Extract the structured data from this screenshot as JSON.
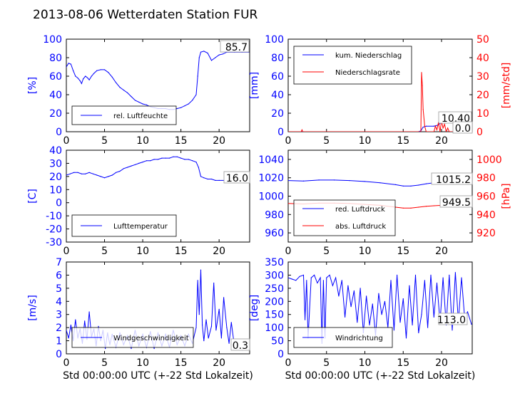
{
  "figure": {
    "title": "2013-08-06 Wetterdaten Station FUR\u001a",
    "colors": {
      "primary": "#0000ff",
      "secondary": "#ff0000",
      "frame": "#000000"
    }
  },
  "chart_data": [
    {
      "id": "humidity",
      "type": "line",
      "title": "",
      "xlabel": "",
      "ylabel": "[%]",
      "xlim": [
        0,
        24
      ],
      "ylim": [
        0,
        100
      ],
      "xticks": [
        0,
        5,
        10,
        15,
        20
      ],
      "yticks": [
        0,
        20,
        40,
        60,
        80,
        100
      ],
      "legend": {
        "placement": "lower-left",
        "entries": [
          "rel. Luftfeuchte"
        ]
      },
      "current_value": "85.7",
      "series": [
        {
          "name": "rel. Luftfeuchte",
          "color": "#0000ff",
          "axis": "left",
          "x": [
            0,
            0.3,
            0.6,
            0.9,
            1.2,
            1.5,
            1.8,
            2.0,
            2.2,
            2.5,
            2.8,
            3.0,
            3.3,
            3.6,
            4.0,
            4.5,
            5.0,
            5.5,
            6.0,
            6.5,
            7.0,
            7.5,
            8.0,
            8.5,
            9.0,
            9.5,
            10.0,
            10.5,
            11.0,
            11.5,
            12.0,
            12.5,
            13.0,
            13.5,
            14.0,
            14.5,
            15.0,
            15.5,
            16.0,
            16.5,
            17.0,
            17.2,
            17.4,
            17.6,
            18.0,
            18.5,
            19.0,
            19.5,
            20.0,
            20.5,
            21.0,
            22.0,
            23.0,
            23.9
          ],
          "y": [
            70,
            74,
            73,
            66,
            60,
            58,
            55,
            52,
            57,
            60,
            58,
            56,
            60,
            63,
            66,
            67,
            67,
            64,
            59,
            53,
            48,
            45,
            42,
            38,
            34,
            32,
            30,
            29,
            27,
            26,
            25,
            25,
            25,
            24,
            24,
            25,
            26,
            28,
            30,
            34,
            40,
            60,
            80,
            86,
            87,
            85,
            77,
            80,
            83,
            84,
            86,
            86,
            86,
            86
          ]
        }
      ]
    },
    {
      "id": "precipitation",
      "type": "line",
      "title": "",
      "xlabel": "",
      "ylabel": "[mm]",
      "ylabel_right": "[mm/std]",
      "xlim": [
        0,
        24
      ],
      "ylim": [
        0,
        100
      ],
      "ylim_right": [
        0,
        50
      ],
      "xticks": [
        0,
        5,
        10,
        15,
        20
      ],
      "yticks": [
        0,
        20,
        40,
        60,
        80,
        100
      ],
      "yticks_right": [
        0,
        10,
        20,
        30,
        40,
        50
      ],
      "legend": {
        "placement": "upper-left",
        "entries": [
          "kum. Niederschlag",
          "Niederschlagsrate"
        ]
      },
      "current_values": [
        "10.40",
        "0.0"
      ],
      "series": [
        {
          "name": "kum. Niederschlag",
          "color": "#0000ff",
          "axis": "left",
          "x": [
            0,
            17.0,
            17.3,
            17.6,
            18.0,
            19.0,
            19.5,
            20.0,
            21.0,
            23.9
          ],
          "y": [
            0,
            0,
            1,
            5,
            6,
            6,
            7,
            10,
            10.4,
            10.4
          ]
        },
        {
          "name": "Niederschlagsrate",
          "color": "#ff0000",
          "axis": "right",
          "x": [
            0,
            1.7,
            1.8,
            1.9,
            2.0,
            17.0,
            17.3,
            17.4,
            17.5,
            17.6,
            17.8,
            18.0,
            19.0,
            19.2,
            19.4,
            19.6,
            19.8,
            20.0,
            20.2,
            20.4,
            20.6,
            20.8,
            21.0,
            23.9
          ],
          "y": [
            0,
            0,
            1,
            0,
            0,
            0,
            0,
            32,
            25,
            12,
            3,
            0,
            0,
            3,
            1,
            5,
            0,
            6,
            2,
            4,
            0,
            2,
            0,
            0
          ]
        }
      ]
    },
    {
      "id": "temperature",
      "type": "line",
      "title": "",
      "xlabel": "",
      "ylabel": "[C]",
      "xlim": [
        0,
        24
      ],
      "ylim": [
        -30,
        40
      ],
      "xticks": [
        0,
        5,
        10,
        15,
        20
      ],
      "yticks": [
        -30,
        -20,
        -10,
        0,
        10,
        20,
        30,
        40
      ],
      "legend": {
        "placement": "lower-left",
        "entries": [
          "Lufttemperatur"
        ]
      },
      "current_value": "16.0",
      "series": [
        {
          "name": "Lufttemperatur",
          "color": "#0000ff",
          "axis": "left",
          "x": [
            0,
            0.5,
            1.0,
            1.5,
            2.0,
            2.5,
            3.0,
            3.5,
            4.0,
            4.5,
            5.0,
            5.5,
            6.0,
            6.5,
            7.0,
            7.5,
            8.0,
            8.5,
            9.0,
            9.5,
            10.0,
            10.5,
            11.0,
            11.5,
            12.0,
            12.5,
            13.0,
            13.5,
            14.0,
            14.5,
            15.0,
            15.5,
            16.0,
            16.5,
            17.0,
            17.3,
            17.6,
            18.0,
            18.5,
            19.0,
            19.5,
            20.0,
            21.0,
            22.0,
            23.0,
            23.9
          ],
          "y": [
            21,
            22,
            23,
            23,
            22,
            22,
            23,
            22,
            21,
            20,
            19,
            20,
            21,
            23,
            24,
            26,
            27,
            28,
            29,
            30,
            31,
            32,
            32,
            33,
            33,
            34,
            34,
            34,
            35,
            35,
            34,
            33,
            33,
            32,
            31,
            27,
            20,
            19,
            18,
            18,
            17,
            17,
            17,
            16,
            16,
            16
          ]
        }
      ]
    },
    {
      "id": "pressure",
      "type": "line",
      "title": "",
      "xlabel": "",
      "ylabel": "",
      "ylabel_right": "[hPa]",
      "xlim": [
        0,
        24
      ],
      "ylim": [
        950,
        1050
      ],
      "ylim_right": [
        910,
        1010
      ],
      "xticks": [
        0,
        5,
        10,
        15,
        20
      ],
      "yticks": [
        960,
        980,
        1000,
        1020,
        1040
      ],
      "yticks_right": [
        920,
        940,
        960,
        980,
        1000
      ],
      "legend": {
        "placement": "lower-left",
        "entries": [
          "red. Luftdruck",
          "abs. Luftdruck"
        ]
      },
      "current_values": [
        "1015.2",
        "949.5"
      ],
      "series": [
        {
          "name": "red. Luftdruck",
          "color": "#0000ff",
          "axis": "left",
          "x": [
            0,
            2,
            4,
            6,
            8,
            10,
            12,
            14,
            15,
            16,
            17,
            18,
            19,
            20,
            21,
            22,
            23,
            23.9
          ],
          "y": [
            1017,
            1016.5,
            1017.5,
            1017.5,
            1017,
            1016,
            1014.5,
            1012.5,
            1011,
            1011,
            1012,
            1013.5,
            1014.5,
            1015,
            1015.5,
            1015.5,
            1015.3,
            1015.2
          ]
        },
        {
          "name": "abs. Luftdruck",
          "color": "#ff0000",
          "axis": "right",
          "x": [
            0,
            2,
            4,
            6,
            8,
            10,
            12,
            14,
            15,
            16,
            17,
            18,
            19,
            20,
            21,
            22,
            23,
            23.9
          ],
          "y": [
            952,
            951.5,
            952.5,
            952.5,
            952,
            951,
            950,
            948,
            947,
            947,
            948,
            949,
            949.5,
            950,
            950,
            950,
            949.7,
            949.5
          ]
        }
      ]
    },
    {
      "id": "windspeed",
      "type": "line",
      "title": "",
      "xlabel": "Std 00:00:00 UTC (+-22 Std Lokalzeit)",
      "ylabel": "[m/s]",
      "xlim": [
        0,
        24
      ],
      "ylim": [
        0,
        7
      ],
      "xticks": [
        0,
        5,
        10,
        15,
        20
      ],
      "yticks": [
        0,
        1,
        2,
        3,
        4,
        5,
        6,
        7
      ],
      "legend": {
        "placement": "lower-left",
        "entries": [
          "Windgeschwindigkeit"
        ]
      },
      "current_value": "0.3",
      "series": [
        {
          "name": "Windgeschwindigkeit",
          "color": "#0000ff",
          "axis": "left",
          "x": [
            0,
            0.3,
            0.6,
            0.9,
            1.2,
            1.5,
            1.8,
            2.1,
            2.4,
            2.7,
            3.0,
            3.3,
            3.6,
            3.9,
            4.2,
            4.5,
            4.8,
            5.1,
            5.4,
            5.7,
            6.0,
            6.5,
            7.0,
            7.5,
            8.0,
            8.5,
            9.0,
            9.5,
            10.0,
            10.5,
            11.0,
            11.5,
            12.0,
            12.5,
            13.0,
            13.5,
            14.0,
            14.5,
            15.0,
            15.5,
            16.0,
            16.5,
            17.0,
            17.2,
            17.4,
            17.6,
            17.8,
            18.0,
            18.3,
            18.6,
            19.0,
            19.3,
            19.6,
            20.0,
            20.3,
            20.6,
            21.0,
            21.3,
            21.6,
            22.0,
            22.5,
            23.0,
            23.5,
            23.9
          ],
          "y": [
            1.8,
            1.2,
            2.2,
            1.0,
            2.6,
            1.2,
            1.9,
            0.8,
            2.5,
            1.1,
            3.2,
            1.3,
            1.9,
            0.6,
            2.1,
            1.0,
            1.8,
            0.4,
            1.6,
            0.7,
            1.5,
            0.5,
            1.6,
            0.7,
            1.4,
            0.4,
            1.8,
            0.6,
            1.5,
            0.5,
            1.7,
            0.4,
            1.6,
            0.6,
            1.5,
            0.5,
            1.8,
            0.7,
            1.4,
            0.6,
            1.5,
            0.8,
            2.0,
            5.6,
            3.0,
            6.4,
            2.2,
            1.0,
            2.6,
            1.2,
            2.1,
            5.4,
            1.8,
            3.4,
            1.2,
            4.3,
            2.0,
            0.8,
            2.4,
            0.6,
            1.0,
            0.3,
            0.8,
            0.3
          ]
        }
      ]
    },
    {
      "id": "winddirection",
      "type": "line",
      "title": "",
      "xlabel": "Std 00:00:00 UTC (+-22 Std Lokalzeit)",
      "ylabel": "[deg]",
      "xlim": [
        0,
        24
      ],
      "ylim": [
        0,
        350
      ],
      "xticks": [
        0,
        5,
        10,
        15,
        20
      ],
      "yticks": [
        0,
        50,
        100,
        150,
        200,
        250,
        300,
        350
      ],
      "legend": {
        "placement": "lower-left",
        "entries": [
          "Windrichtung"
        ]
      },
      "current_value": "113.0",
      "series": [
        {
          "name": "Windrichtung",
          "color": "#0000ff",
          "axis": "left",
          "x": [
            0,
            0.5,
            1.0,
            1.5,
            2.0,
            2.2,
            2.4,
            2.6,
            3.0,
            3.4,
            3.8,
            4.2,
            4.4,
            4.6,
            4.8,
            5.0,
            5.4,
            5.8,
            6.2,
            6.6,
            7.0,
            7.4,
            7.8,
            8.2,
            8.6,
            9.0,
            9.4,
            9.8,
            10.2,
            10.6,
            11.0,
            11.4,
            11.8,
            12.2,
            12.6,
            13.0,
            13.4,
            13.8,
            14.2,
            14.6,
            15.0,
            15.4,
            15.8,
            16.2,
            16.6,
            17.0,
            17.4,
            17.8,
            18.2,
            18.6,
            19.0,
            19.4,
            19.8,
            20.2,
            20.6,
            21.0,
            21.4,
            21.8,
            22.2,
            22.6,
            23.0,
            23.4,
            23.9
          ],
          "y": [
            290,
            285,
            280,
            295,
            300,
            130,
            280,
            60,
            290,
            300,
            270,
            290,
            40,
            280,
            60,
            290,
            300,
            260,
            290,
            220,
            280,
            140,
            260,
            180,
            240,
            120,
            250,
            80,
            220,
            110,
            190,
            70,
            230,
            150,
            200,
            100,
            280,
            90,
            300,
            120,
            210,
            60,
            260,
            110,
            300,
            80,
            150,
            280,
            100,
            300,
            140,
            270,
            120,
            290,
            110,
            300,
            90,
            310,
            120,
            290,
            140,
            160,
            113
          ]
        }
      ]
    }
  ]
}
